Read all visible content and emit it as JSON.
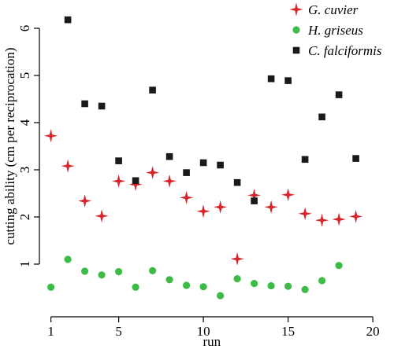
{
  "chart_data": {
    "type": "scatter",
    "xlabel": "run",
    "ylabel": "cutting ability (cm per reciprocation)",
    "xlim": [
      0.6,
      20.6
    ],
    "ylim": [
      0.0,
      6.4
    ],
    "xticks": [
      1,
      5,
      10,
      15,
      20
    ],
    "yticks": [
      1,
      2,
      3,
      4,
      5,
      6
    ],
    "grid": false,
    "legend_position": "top-right",
    "series": [
      {
        "name": "G. cuvier",
        "marker": "four-point-star",
        "color": "#d7262b",
        "points": [
          {
            "x": 1,
            "y": 3.72
          },
          {
            "x": 2,
            "y": 3.08
          },
          {
            "x": 3,
            "y": 2.34
          },
          {
            "x": 4,
            "y": 2.02
          },
          {
            "x": 5,
            "y": 2.76
          },
          {
            "x": 6,
            "y": 2.69
          },
          {
            "x": 7,
            "y": 2.94
          },
          {
            "x": 8,
            "y": 2.76
          },
          {
            "x": 9,
            "y": 2.41
          },
          {
            "x": 10,
            "y": 2.12
          },
          {
            "x": 11,
            "y": 2.21
          },
          {
            "x": 12,
            "y": 1.11
          },
          {
            "x": 13,
            "y": 2.46
          },
          {
            "x": 14,
            "y": 2.21
          },
          {
            "x": 15,
            "y": 2.47
          },
          {
            "x": 16,
            "y": 2.07
          },
          {
            "x": 17,
            "y": 1.93
          },
          {
            "x": 18,
            "y": 1.95
          },
          {
            "x": 19,
            "y": 2.01
          }
        ]
      },
      {
        "name": "H. griseus",
        "marker": "circle",
        "color": "#3dbb47",
        "points": [
          {
            "x": 1,
            "y": 0.51
          },
          {
            "x": 2,
            "y": 1.1
          },
          {
            "x": 3,
            "y": 0.85
          },
          {
            "x": 4,
            "y": 0.77
          },
          {
            "x": 5,
            "y": 0.84
          },
          {
            "x": 6,
            "y": 0.51
          },
          {
            "x": 7,
            "y": 0.86
          },
          {
            "x": 8,
            "y": 0.67
          },
          {
            "x": 9,
            "y": 0.55
          },
          {
            "x": 10,
            "y": 0.52
          },
          {
            "x": 11,
            "y": 0.33
          },
          {
            "x": 12,
            "y": 0.69
          },
          {
            "x": 13,
            "y": 0.59
          },
          {
            "x": 14,
            "y": 0.54
          },
          {
            "x": 15,
            "y": 0.53
          },
          {
            "x": 16,
            "y": 0.46
          },
          {
            "x": 17,
            "y": 0.65
          },
          {
            "x": 18,
            "y": 0.97
          }
        ]
      },
      {
        "name": "C. falciformis",
        "marker": "square",
        "color": "#1a1a1a",
        "points": [
          {
            "x": 2,
            "y": 6.18
          },
          {
            "x": 3,
            "y": 4.4
          },
          {
            "x": 4,
            "y": 4.35
          },
          {
            "x": 5,
            "y": 3.19
          },
          {
            "x": 6,
            "y": 2.77
          },
          {
            "x": 7,
            "y": 4.69
          },
          {
            "x": 8,
            "y": 3.28
          },
          {
            "x": 9,
            "y": 2.94
          },
          {
            "x": 10,
            "y": 3.15
          },
          {
            "x": 11,
            "y": 3.1
          },
          {
            "x": 12,
            "y": 2.73
          },
          {
            "x": 13,
            "y": 2.34
          },
          {
            "x": 14,
            "y": 4.93
          },
          {
            "x": 15,
            "y": 4.89
          },
          {
            "x": 16,
            "y": 3.22
          },
          {
            "x": 17,
            "y": 4.12
          },
          {
            "x": 18,
            "y": 4.59
          },
          {
            "x": 19,
            "y": 3.24
          }
        ]
      }
    ]
  }
}
